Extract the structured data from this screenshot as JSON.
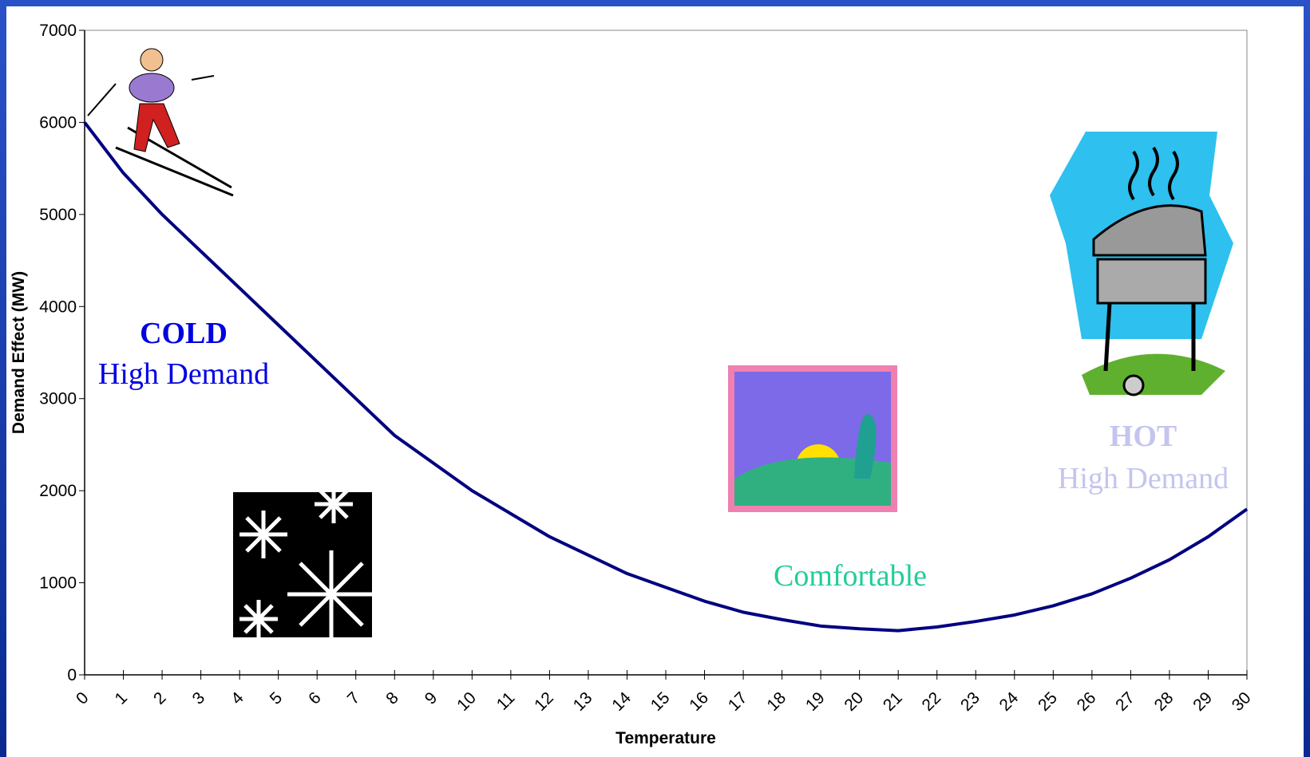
{
  "chart_data": {
    "type": "line",
    "x_label": "Temperature",
    "y_label": "Demand Effect (MW)",
    "x": [
      0,
      1,
      2,
      3,
      4,
      5,
      6,
      7,
      8,
      9,
      10,
      11,
      12,
      13,
      14,
      15,
      16,
      17,
      18,
      19,
      20,
      21,
      22,
      23,
      24,
      25,
      26,
      27,
      28,
      29,
      30
    ],
    "series": [
      {
        "color": "#000080",
        "values": [
          6000,
          5450,
          5000,
          4600,
          4200,
          3800,
          3400,
          3000,
          2600,
          2300,
          2000,
          1750,
          1500,
          1300,
          1100,
          950,
          800,
          680,
          600,
          530,
          500,
          480,
          520,
          580,
          650,
          750,
          880,
          1050,
          1250,
          1500,
          1800
        ]
      }
    ],
    "xlim": [
      0,
      30
    ],
    "xticks": [
      0,
      1,
      2,
      3,
      4,
      5,
      6,
      7,
      8,
      9,
      10,
      11,
      12,
      13,
      14,
      15,
      16,
      17,
      18,
      19,
      20,
      21,
      22,
      23,
      24,
      25,
      26,
      27,
      28,
      29,
      30
    ],
    "ylim": [
      0,
      7000
    ],
    "yticks": [
      0,
      1000,
      2000,
      3000,
      4000,
      5000,
      6000,
      7000
    ],
    "annotations": [
      {
        "text": "COLD",
        "color": "#0000e0",
        "bold": true
      },
      {
        "text": "High Demand",
        "color": "#0000e0",
        "bold": false
      },
      {
        "text": "Comfortable",
        "color": "#22cc99",
        "bold": false
      },
      {
        "text": "HOT",
        "color": "#c4c4f0",
        "bold": true
      },
      {
        "text": "High Demand",
        "color": "#c4c4f0",
        "bold": false
      }
    ]
  }
}
